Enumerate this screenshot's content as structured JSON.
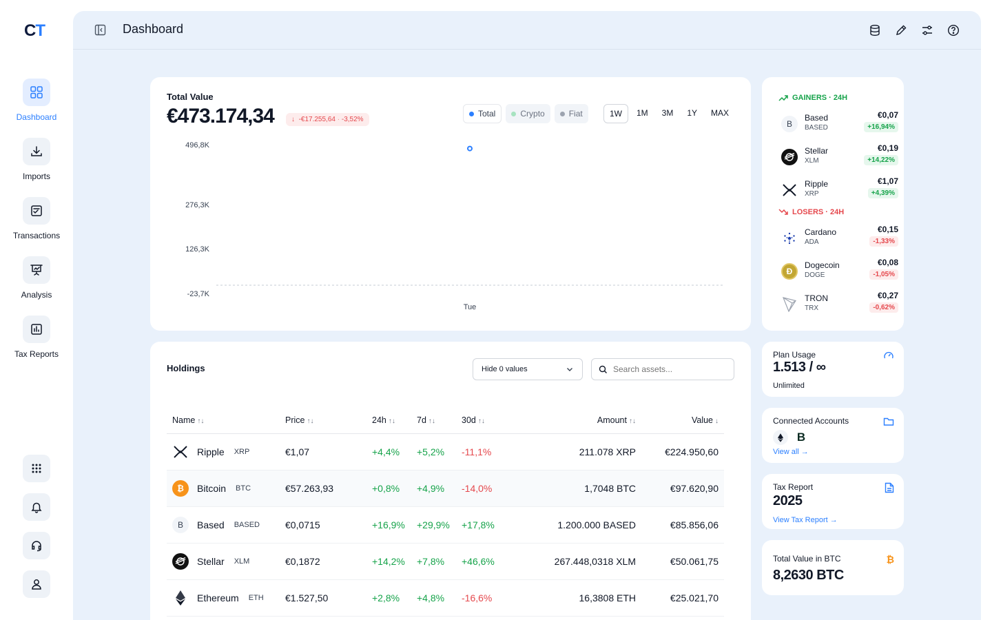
{
  "app": {
    "logo_a": "C",
    "logo_b": "T"
  },
  "sidebar": {
    "items": [
      {
        "label": "Dashboard",
        "icon": "grid-icon",
        "active": true
      },
      {
        "label": "Imports",
        "icon": "download-icon"
      },
      {
        "label": "Transactions",
        "icon": "checklist-icon"
      },
      {
        "label": "Analysis",
        "icon": "presentation-icon"
      },
      {
        "label": "Tax Reports",
        "icon": "bar-chart-icon"
      }
    ],
    "bottom": [
      "apps-icon",
      "bell-icon",
      "headset-icon",
      "user-icon"
    ]
  },
  "header": {
    "title": "Dashboard",
    "icons": [
      "database-icon",
      "pencil-icon",
      "sliders-icon",
      "help-icon"
    ]
  },
  "total": {
    "label": "Total Value",
    "value": "€473.174,34",
    "change": "-€17.255,64",
    "change_sep": "·",
    "change_pct": "-3,52%",
    "filters": [
      {
        "label": "Total",
        "color": "#2b7fff",
        "active": true
      },
      {
        "label": "Crypto",
        "color": "#a7e3c0"
      },
      {
        "label": "Fiat",
        "color": "#9ca3af"
      }
    ],
    "ranges": [
      {
        "label": "1W",
        "active": true
      },
      {
        "label": "1M"
      },
      {
        "label": "3M"
      },
      {
        "label": "1Y"
      },
      {
        "label": "MAX"
      }
    ]
  },
  "chart_data": {
    "type": "line",
    "x": [
      "Tue"
    ],
    "series": [
      {
        "values": [
          473174.34
        ]
      }
    ],
    "yticks": [
      "496,8K",
      "276,3K",
      "126,3K",
      "-23,7K"
    ],
    "ylim": [
      -23700,
      496800
    ],
    "baseline": 0,
    "grid": false
  },
  "holdings": {
    "title": "Holdings",
    "filter": "Hide 0 values",
    "search_placeholder": "Search assets...",
    "columns": [
      "Name",
      "Price",
      "24h",
      "7d",
      "30d",
      "Amount",
      "Value"
    ],
    "rows": [
      {
        "name": "Ripple",
        "ticker": "XRP",
        "price": "€1,07",
        "d24": "+4,4%",
        "d7": "+5,2%",
        "d30": "-11,1%",
        "amount": "211.078 XRP",
        "value": "€224.950,60",
        "icon": "xrp-icon"
      },
      {
        "name": "Bitcoin",
        "ticker": "BTC",
        "price": "€57.263,93",
        "d24": "+0,8%",
        "d7": "+4,9%",
        "d30": "-14,0%",
        "amount": "1,7048 BTC",
        "value": "€97.620,90",
        "icon": "btc-icon"
      },
      {
        "name": "Based",
        "ticker": "BASED",
        "price": "€0,0715",
        "d24": "+16,9%",
        "d7": "+29,9%",
        "d30": "+17,8%",
        "amount": "1.200.000 BASED",
        "value": "€85.856,06",
        "icon": "based-icon"
      },
      {
        "name": "Stellar",
        "ticker": "XLM",
        "price": "€0,1872",
        "d24": "+14,2%",
        "d7": "+7,8%",
        "d30": "+46,6%",
        "amount": "267.448,0318 XLM",
        "value": "€50.061,75",
        "icon": "xlm-icon"
      },
      {
        "name": "Ethereum",
        "ticker": "ETH",
        "price": "€1.527,50",
        "d24": "+2,8%",
        "d7": "+4,8%",
        "d30": "-16,6%",
        "amount": "16,3808 ETH",
        "value": "€25.021,70",
        "icon": "eth-icon"
      }
    ]
  },
  "movers": {
    "gainers_label": "GAINERS · 24H",
    "losers_label": "LOSERS · 24H",
    "gainers": [
      {
        "name": "Based",
        "ticker": "BASED",
        "price": "€0,07",
        "change": "+16,94%"
      },
      {
        "name": "Stellar",
        "ticker": "XLM",
        "price": "€0,19",
        "change": "+14,22%"
      },
      {
        "name": "Ripple",
        "ticker": "XRP",
        "price": "€1,07",
        "change": "+4,39%"
      }
    ],
    "losers": [
      {
        "name": "Cardano",
        "ticker": "ADA",
        "price": "€0,15",
        "change": "-1,33%"
      },
      {
        "name": "Dogecoin",
        "ticker": "DOGE",
        "price": "€0,08",
        "change": "-1,05%"
      },
      {
        "name": "TRON",
        "ticker": "TRX",
        "price": "€0,27",
        "change": "-0,62%"
      }
    ]
  },
  "plan": {
    "label": "Plan Usage",
    "value": "1.513 / ∞",
    "sub": "Unlimited"
  },
  "accounts": {
    "label": "Connected Accounts",
    "link": "View all →"
  },
  "tax": {
    "label": "Tax Report",
    "year": "2025",
    "link": "View Tax Report →"
  },
  "btc": {
    "label": "Total Value in BTC",
    "value": "8,2630 BTC"
  },
  "colors": {
    "accent": "#2b7fff",
    "positive": "#16a34a",
    "negative": "#e5484d",
    "bg": "#e9f1fb"
  }
}
